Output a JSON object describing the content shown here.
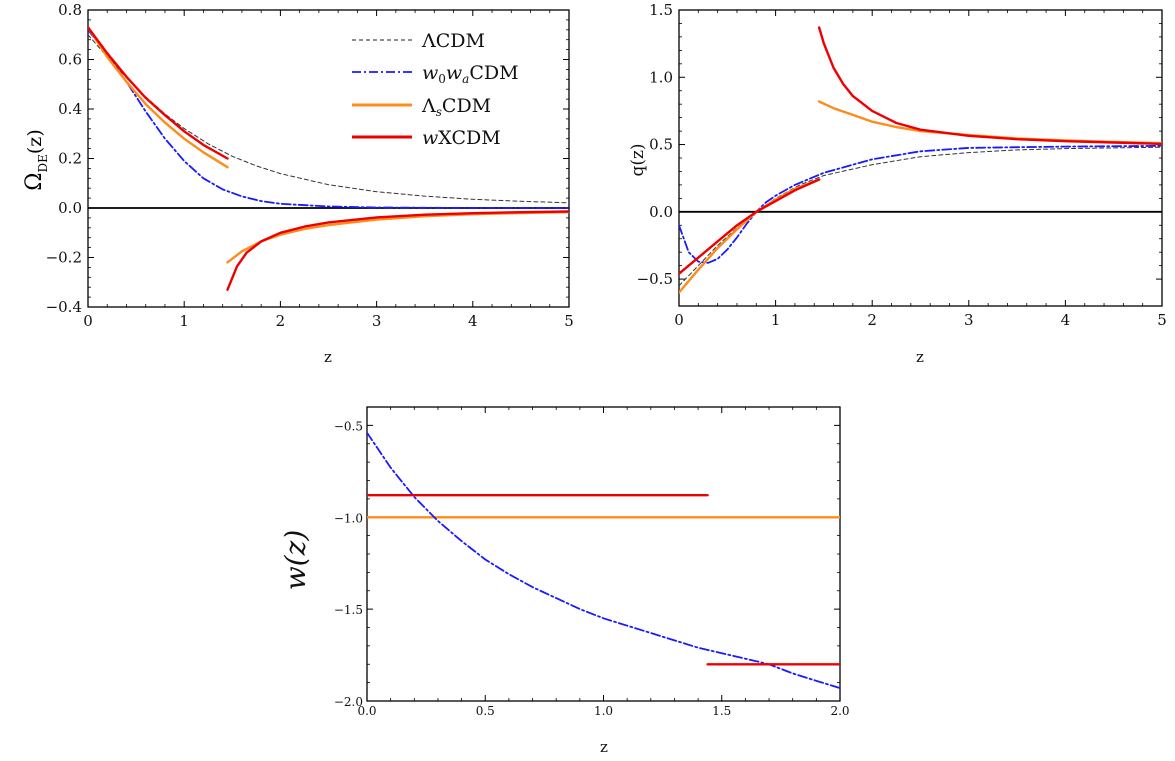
{
  "chart_data": [
    {
      "id": "omega",
      "type": "line",
      "xlabel": "z",
      "ylabel": "ΩDE(z)",
      "ylabel_main": "Ω",
      "ylabel_sub": "DE",
      "ylabel_tail": "(z)",
      "xlim": [
        0,
        5
      ],
      "ylim": [
        -0.4,
        0.8
      ],
      "xticks": [
        0,
        1,
        2,
        3,
        4,
        5
      ],
      "yticks": [
        -0.4,
        -0.2,
        0.0,
        0.2,
        0.4,
        0.6,
        0.8
      ],
      "xtick_labels": [
        "0",
        "1",
        "2",
        "3",
        "4",
        "5"
      ],
      "ytick_labels": [
        "−0.4",
        "−0.2",
        "0.0",
        "0.2",
        "0.4",
        "0.6",
        "0.8"
      ],
      "zero_line": true,
      "legend": {
        "position": "top-right",
        "entries": [
          {
            "series": "LCDM",
            "main": "ΛCDM"
          },
          {
            "series": "w0waCDM",
            "main": "w",
            "sub1": "0",
            "mid": "w",
            "sub2": "a",
            "tail": "CDM"
          },
          {
            "series": "LsCDM",
            "main": "Λ",
            "sub1": "s",
            "tail": "CDM"
          },
          {
            "series": "wXCDM",
            "main": "w",
            "tail": "XCDM"
          }
        ]
      },
      "series": [
        {
          "key": "LCDM",
          "style": "dashed-black",
          "segments": [
            {
              "x": [
                0,
                0.2,
                0.4,
                0.6,
                0.8,
                1.0,
                1.25,
                1.5,
                1.75,
                2.0,
                2.5,
                3.0,
                3.5,
                4.0,
                4.5,
                5.0
              ],
              "y": [
                0.7,
                0.611,
                0.526,
                0.449,
                0.38,
                0.321,
                0.259,
                0.209,
                0.17,
                0.139,
                0.094,
                0.066,
                0.048,
                0.035,
                0.027,
                0.021
              ]
            }
          ]
        },
        {
          "key": "w0waCDM",
          "style": "dashdot-blue",
          "segments": [
            {
              "x": [
                0,
                0.2,
                0.4,
                0.6,
                0.8,
                1.0,
                1.2,
                1.4,
                1.6,
                1.8,
                2.0,
                2.5,
                3.0,
                4.0,
                5.0
              ],
              "y": [
                0.72,
                0.62,
                0.51,
                0.39,
                0.28,
                0.19,
                0.12,
                0.075,
                0.047,
                0.028,
                0.017,
                0.006,
                0.002,
                0.0,
                0.0
              ]
            }
          ]
        },
        {
          "key": "LsCDM",
          "style": "solid-orange",
          "segments": [
            {
              "x": [
                0,
                0.2,
                0.4,
                0.6,
                0.8,
                1.0,
                1.2,
                1.45
              ],
              "y": [
                0.73,
                0.61,
                0.51,
                0.42,
                0.345,
                0.28,
                0.225,
                0.165
              ]
            },
            {
              "x": [
                1.45,
                1.6,
                1.8,
                2.0,
                2.25,
                2.5,
                3.0,
                3.5,
                4.0,
                4.5,
                5.0
              ],
              "y": [
                -0.22,
                -0.175,
                -0.135,
                -0.108,
                -0.085,
                -0.069,
                -0.047,
                -0.033,
                -0.025,
                -0.02,
                -0.016
              ]
            }
          ]
        },
        {
          "key": "wXCDM",
          "style": "solid-red",
          "segments": [
            {
              "x": [
                0,
                0.2,
                0.4,
                0.6,
                0.8,
                1.0,
                1.2,
                1.45
              ],
              "y": [
                0.73,
                0.625,
                0.53,
                0.445,
                0.375,
                0.31,
                0.255,
                0.2
              ]
            },
            {
              "x": [
                1.45,
                1.55,
                1.65,
                1.8,
                2.0,
                2.25,
                2.5,
                3.0,
                3.5,
                4.0,
                4.5,
                5.0
              ],
              "y": [
                -0.33,
                -0.235,
                -0.18,
                -0.135,
                -0.1,
                -0.075,
                -0.058,
                -0.038,
                -0.027,
                -0.021,
                -0.017,
                -0.014
              ]
            }
          ]
        }
      ]
    },
    {
      "id": "q",
      "type": "line",
      "xlabel": "z",
      "ylabel": "q(z)",
      "xlim": [
        0,
        5
      ],
      "ylim": [
        -0.7,
        1.5
      ],
      "xticks": [
        0,
        1,
        2,
        3,
        4,
        5
      ],
      "yticks": [
        -0.5,
        0.0,
        0.5,
        1.0,
        1.5
      ],
      "xtick_labels": [
        "0",
        "1",
        "2",
        "3",
        "4",
        "5"
      ],
      "ytick_labels": [
        "−0.5",
        "0.0",
        "0.5",
        "1.0",
        "1.5"
      ],
      "zero_line": true,
      "series": [
        {
          "key": "LCDM",
          "style": "dashed-black",
          "segments": [
            {
              "x": [
                0,
                0.2,
                0.4,
                0.6,
                0.8,
                1.0,
                1.25,
                1.5,
                2.0,
                2.5,
                3.0,
                3.5,
                4.0,
                4.5,
                5.0
              ],
              "y": [
                -0.55,
                -0.4,
                -0.25,
                -0.12,
                0.0,
                0.1,
                0.2,
                0.27,
                0.35,
                0.41,
                0.44,
                0.46,
                0.47,
                0.475,
                0.48
              ]
            }
          ]
        },
        {
          "key": "w0waCDM",
          "style": "dashdot-blue",
          "segments": [
            {
              "x": [
                0,
                0.1,
                0.2,
                0.3,
                0.4,
                0.5,
                0.6,
                0.7,
                0.8,
                0.9,
                1.0,
                1.2,
                1.5,
                2.0,
                2.5,
                3.0,
                3.5,
                4.0,
                5.0
              ],
              "y": [
                -0.1,
                -0.3,
                -0.37,
                -0.38,
                -0.35,
                -0.28,
                -0.19,
                -0.09,
                0.0,
                0.07,
                0.12,
                0.2,
                0.29,
                0.39,
                0.45,
                0.475,
                0.48,
                0.485,
                0.49
              ]
            }
          ]
        },
        {
          "key": "LsCDM",
          "style": "solid-orange",
          "segments": [
            {
              "x": [
                0,
                0.2,
                0.4,
                0.6,
                0.8,
                1.0,
                1.2,
                1.45
              ],
              "y": [
                -0.6,
                -0.43,
                -0.27,
                -0.13,
                0.0,
                0.09,
                0.17,
                0.24
              ]
            },
            {
              "x": [
                1.45,
                1.6,
                1.8,
                2.0,
                2.25,
                2.5,
                3.0,
                3.5,
                4.0,
                4.5,
                5.0
              ],
              "y": [
                0.82,
                0.77,
                0.72,
                0.67,
                0.63,
                0.6,
                0.57,
                0.545,
                0.53,
                0.52,
                0.51
              ]
            }
          ]
        },
        {
          "key": "wXCDM",
          "style": "solid-red",
          "segments": [
            {
              "x": [
                0,
                0.2,
                0.4,
                0.6,
                0.8,
                1.0,
                1.2,
                1.45
              ],
              "y": [
                -0.46,
                -0.34,
                -0.22,
                -0.1,
                0.0,
                0.08,
                0.16,
                0.24
              ]
            },
            {
              "x": [
                1.45,
                1.5,
                1.6,
                1.7,
                1.8,
                2.0,
                2.25,
                2.5,
                3.0,
                3.5,
                4.0,
                4.5,
                5.0
              ],
              "y": [
                1.37,
                1.25,
                1.07,
                0.95,
                0.86,
                0.75,
                0.66,
                0.61,
                0.565,
                0.54,
                0.525,
                0.515,
                0.505
              ]
            }
          ]
        }
      ]
    },
    {
      "id": "w",
      "type": "line",
      "xlabel": "z",
      "ylabel": "w(z)",
      "xlim": [
        0,
        2
      ],
      "ylim": [
        -2.0,
        -0.4
      ],
      "xticks": [
        0,
        0.5,
        1.0,
        1.5,
        2.0
      ],
      "yticks": [
        -2.0,
        -1.5,
        -1.0,
        -0.5
      ],
      "xtick_labels": [
        "0.0",
        "0.5",
        "1.0",
        "1.5",
        "2.0"
      ],
      "ytick_labels": [
        "−2.0",
        "−1.5",
        "−1.0",
        "−0.5"
      ],
      "zero_line": false,
      "series": [
        {
          "key": "LCDM",
          "style": "dashed-black",
          "segments": [
            {
              "x": [
                0,
                2
              ],
              "y": [
                -1.0,
                -1.0
              ]
            }
          ]
        },
        {
          "key": "LsCDM",
          "style": "solid-orange",
          "segments": [
            {
              "x": [
                0,
                2
              ],
              "y": [
                -1.0,
                -1.0
              ]
            }
          ]
        },
        {
          "key": "w0waCDM",
          "style": "dashdot-blue",
          "segments": [
            {
              "x": [
                0,
                0.1,
                0.2,
                0.3,
                0.4,
                0.5,
                0.6,
                0.7,
                0.8,
                0.9,
                1.0,
                1.1,
                1.2,
                1.3,
                1.4,
                1.5,
                1.6,
                1.7,
                1.8,
                1.9,
                2.0
              ],
              "y": [
                -0.54,
                -0.73,
                -0.89,
                -1.02,
                -1.13,
                -1.23,
                -1.31,
                -1.38,
                -1.44,
                -1.5,
                -1.55,
                -1.59,
                -1.63,
                -1.67,
                -1.71,
                -1.74,
                -1.77,
                -1.8,
                -1.85,
                -1.89,
                -1.93
              ]
            }
          ]
        },
        {
          "key": "wXCDM",
          "style": "solid-red",
          "segments": [
            {
              "x": [
                0,
                1.44
              ],
              "y": [
                -0.88,
                -0.88
              ]
            },
            {
              "x": [
                1.44,
                2.0
              ],
              "y": [
                -1.8,
                -1.8
              ]
            }
          ]
        }
      ]
    }
  ]
}
